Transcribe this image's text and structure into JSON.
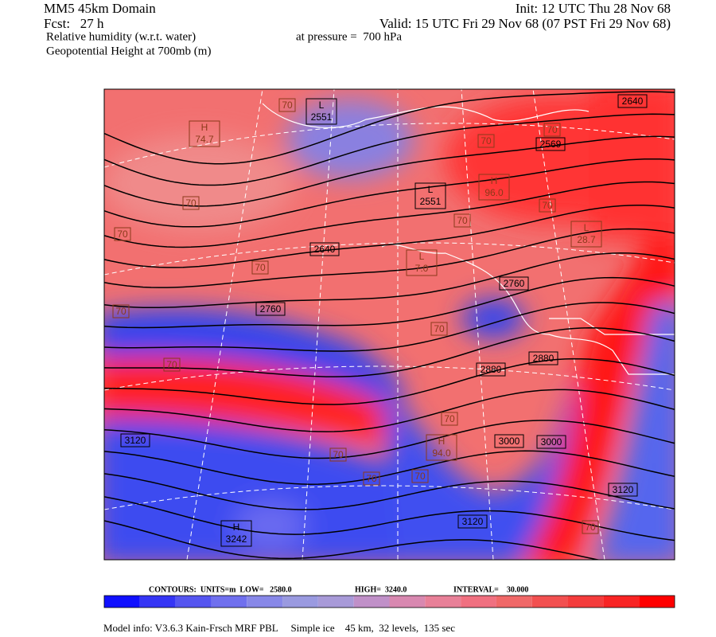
{
  "header": {
    "model": "MM5 45km Domain",
    "forecast": "Fcst:   27 h",
    "field1": "Relative humidity (w.r.t. water)",
    "field2": "Geopotential Height at 700mb (m)",
    "init": "Init: 12 UTC Thu 28 Nov 68",
    "valid": "Valid: 15 UTC Fri 29 Nov 68 (07 PST Fri 29 Nov 68)",
    "pressure": "at pressure =  700 hPa"
  },
  "map": {
    "centers": [
      {
        "kind": "L",
        "value": "2551"
      },
      {
        "kind": "L",
        "value": "2551"
      },
      {
        "kind": "H",
        "value": "3242"
      },
      {
        "kind": "H",
        "value": "74.7"
      },
      {
        "kind": "L",
        "value": "7.0"
      },
      {
        "kind": "L",
        "value": "28.7"
      },
      {
        "kind": "H",
        "value": "96.0"
      },
      {
        "kind": "H",
        "value": "94.0"
      }
    ],
    "height_labels": [
      "2640",
      "2569",
      "2640",
      "2760",
      "2760",
      "2880",
      "2880",
      "3000",
      "3000",
      "3120",
      "3120",
      "3120"
    ],
    "rh_labels": [
      "70",
      "70",
      "70",
      "70",
      "70",
      "70",
      "70",
      "70",
      "70",
      "70",
      "70",
      "70",
      "70",
      "70",
      "70",
      "70"
    ]
  },
  "colorbar": {
    "colors": [
      "#1010ff",
      "#3535f5",
      "#5555f0",
      "#7070ee",
      "#8888e8",
      "#9a9ae0",
      "#a89ad8",
      "#c090c8",
      "#d888b0",
      "#e88098",
      "#f07080",
      "#f06868",
      "#f25050",
      "#f43c3c",
      "#f82424",
      "#ff0000"
    ]
  },
  "contour_info": {
    "contours": "CONTOURS:  UNITS=m  LOW=   2580.0",
    "high": "HIGH=  3240.0",
    "interval": "INTERVAL=    30.000"
  },
  "footer": "Model info: V3.6.3 Kain-Frsch MRF PBL     Simple ice    45 km,  32 levels,  135 sec"
}
